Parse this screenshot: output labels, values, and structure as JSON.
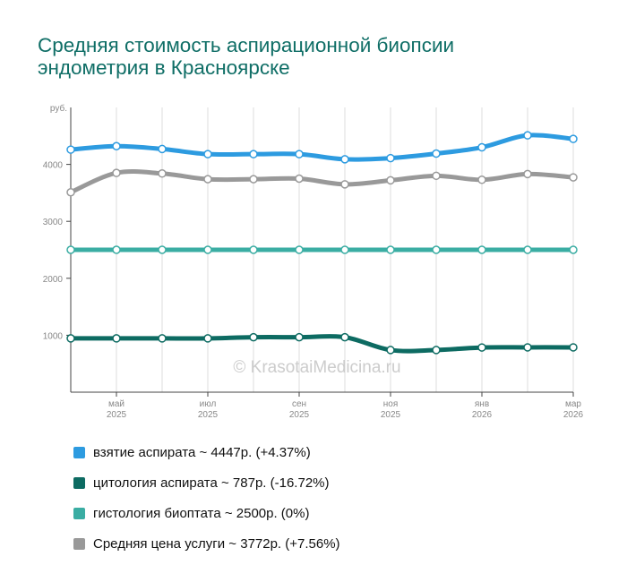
{
  "page": {
    "title_lines": [
      "Средняя стоимость аспирационной биопсии",
      "эндометрия в Красноярске"
    ],
    "watermark": "© KrasotaiMedicina.ru"
  },
  "colors": {
    "title": "#0f6e66",
    "grid": "#dddddd",
    "axis": "#444444",
    "tick_text": "#888888",
    "watermark": "#cccccc"
  },
  "legend": [
    {
      "label": "взятие аспирата ~ 4447р. (+4.37%)",
      "color": "#2d9be0"
    },
    {
      "label": "цитология аспирата ~ 787р. (-16.72%)",
      "color": "#0d6b62"
    },
    {
      "label": "гистология биоптата ~ 2500р. (0%)",
      "color": "#3aada3"
    },
    {
      "label": "Средняя цена услуги ~ 3772р. (+7.56%)",
      "color": "#999999"
    }
  ],
  "chart_data": {
    "type": "line",
    "title": "Средняя стоимость аспирационной биопсии эндометрия в Красноярске",
    "xlabel": "",
    "ylabel": "руб.",
    "ylim": [
      0,
      5000
    ],
    "y_ticks": [
      1000,
      2000,
      3000,
      4000
    ],
    "y_unit_label": "руб.",
    "x": [
      "2025-04",
      "2025-05",
      "2025-06",
      "2025-07",
      "2025-08",
      "2025-09",
      "2025-10",
      "2025-11",
      "2025-12",
      "2026-01",
      "2026-02",
      "2026-03"
    ],
    "x_tick_labels": [
      {
        "month": "май",
        "year": "2025",
        "index": 1
      },
      {
        "month": "июл",
        "year": "2025",
        "index": 3
      },
      {
        "month": "сен",
        "year": "2025",
        "index": 5
      },
      {
        "month": "ноя",
        "year": "2025",
        "index": 7
      },
      {
        "month": "янв",
        "year": "2026",
        "index": 9
      },
      {
        "month": "мар",
        "year": "2026",
        "index": 11
      }
    ],
    "grid": true,
    "legend_position": "bottom",
    "series": [
      {
        "name": "взятие аспирата",
        "color": "#2d9be0",
        "values": [
          4260,
          4320,
          4270,
          4180,
          4180,
          4180,
          4090,
          4110,
          4190,
          4300,
          4510,
          4447
        ]
      },
      {
        "name": "Средняя цена услуги",
        "color": "#999999",
        "values": [
          3510,
          3850,
          3840,
          3740,
          3740,
          3750,
          3650,
          3720,
          3800,
          3730,
          3830,
          3772
        ]
      },
      {
        "name": "гистология биоптата",
        "color": "#3aada3",
        "values": [
          2500,
          2500,
          2500,
          2500,
          2500,
          2500,
          2500,
          2500,
          2500,
          2500,
          2500,
          2500
        ]
      },
      {
        "name": "цитология аспирата",
        "color": "#0d6b62",
        "values": [
          945,
          945,
          945,
          945,
          965,
          965,
          965,
          740,
          740,
          785,
          787,
          787
        ]
      }
    ]
  }
}
